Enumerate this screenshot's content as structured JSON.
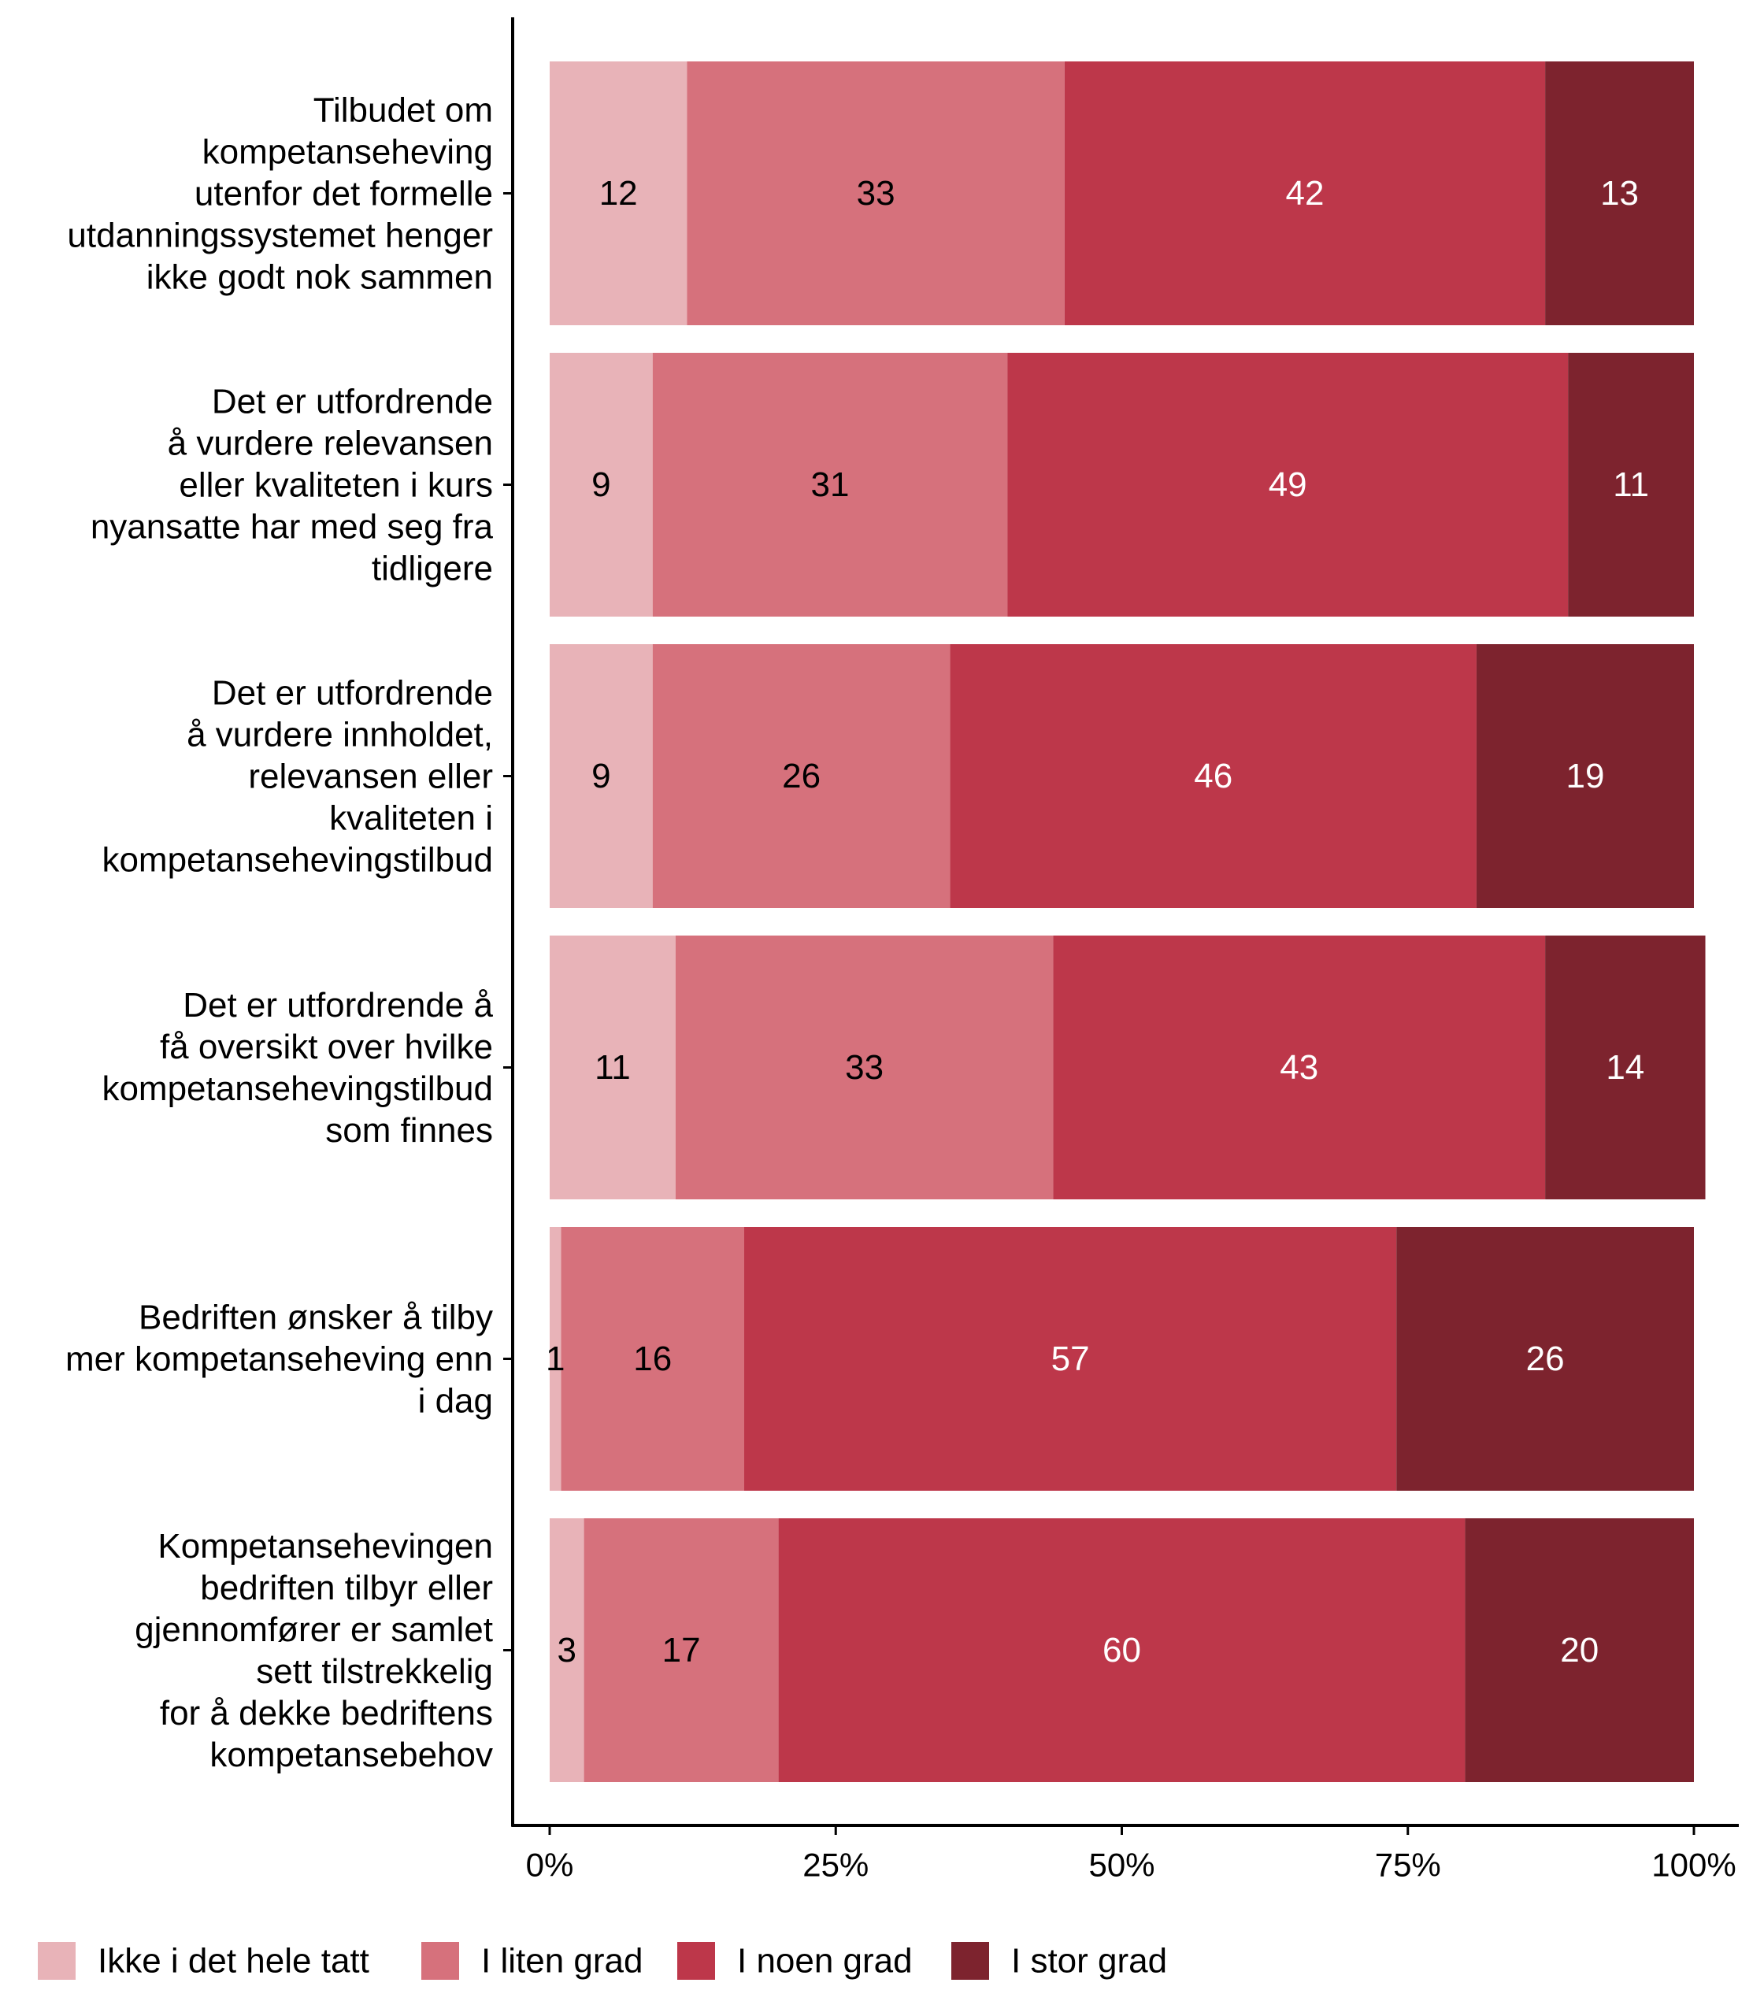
{
  "chart_data": {
    "type": "bar",
    "orientation": "horizontal",
    "stacked": true,
    "normalized": true,
    "categories": [
      "Tilbudet om kompetanseheving utenfor det formelle utdanningssystemet henger ikke godt nok sammen",
      "Det er utfordrende å vurdere relevansen eller kvaliteten i kurs nyansatte har med seg fra tidligere",
      "Det er utfordrende å vurdere innholdet, relevansen eller kvaliteten i kompetansehevingstilbud",
      "Det er utfordrende å få oversikt over hvilke kompetansehevingstilbud som finnes",
      "Bedriften ønsker å tilby mer kompetanseheving enn i dag",
      "Kompetansehevingen bedriften tilbyr eller gjennomfører er samlet sett tilstrekkelig for å dekke bedriftens kompetansebehov"
    ],
    "category_lines": [
      [
        "Tilbudet om",
        "kompetanseheving",
        "utenfor det formelle",
        "utdanningssystemet henger",
        "ikke godt nok sammen"
      ],
      [
        "Det er utfordrende",
        "å vurdere relevansen",
        "eller kvaliteten i kurs",
        "nyansatte har med seg fra",
        "tidligere"
      ],
      [
        "Det er utfordrende",
        "å vurdere innholdet,",
        "relevansen eller",
        "kvaliteten i",
        "kompetansehevingstilbud"
      ],
      [
        "Det er utfordrende å",
        "få oversikt over hvilke",
        "kompetansehevingstilbud",
        "som finnes"
      ],
      [
        "Bedriften ønsker å tilby",
        "mer kompetanseheving enn",
        "i dag"
      ],
      [
        "Kompetansehevingen",
        "bedriften tilbyr eller",
        "gjennomfører er samlet",
        "sett tilstrekkelig",
        "for å dekke bedriftens",
        "kompetansebehov"
      ]
    ],
    "series": [
      {
        "name": "Ikke i det hele tatt",
        "color": "#e8b3b8",
        "label_color": "#000000",
        "values": [
          12,
          9,
          9,
          11,
          1,
          3
        ]
      },
      {
        "name": "I liten grad",
        "color": "#d6717c",
        "label_color": "#000000",
        "values": [
          33,
          31,
          26,
          33,
          16,
          17
        ]
      },
      {
        "name": "I noen grad",
        "color": "#bd374a",
        "label_color": "#ffffff",
        "values": [
          42,
          49,
          46,
          43,
          57,
          60
        ]
      },
      {
        "name": "I stor grad",
        "color": "#7d232e",
        "label_color": "#ffffff",
        "values": [
          13,
          11,
          19,
          14,
          26,
          20
        ]
      }
    ],
    "xlim": [
      0,
      100
    ],
    "x_ticks": [
      "0%",
      "25%",
      "50%",
      "75%",
      "100%"
    ],
    "xlabel": "",
    "ylabel": "",
    "title": "",
    "grid": false,
    "legend_position": "bottom-left"
  }
}
